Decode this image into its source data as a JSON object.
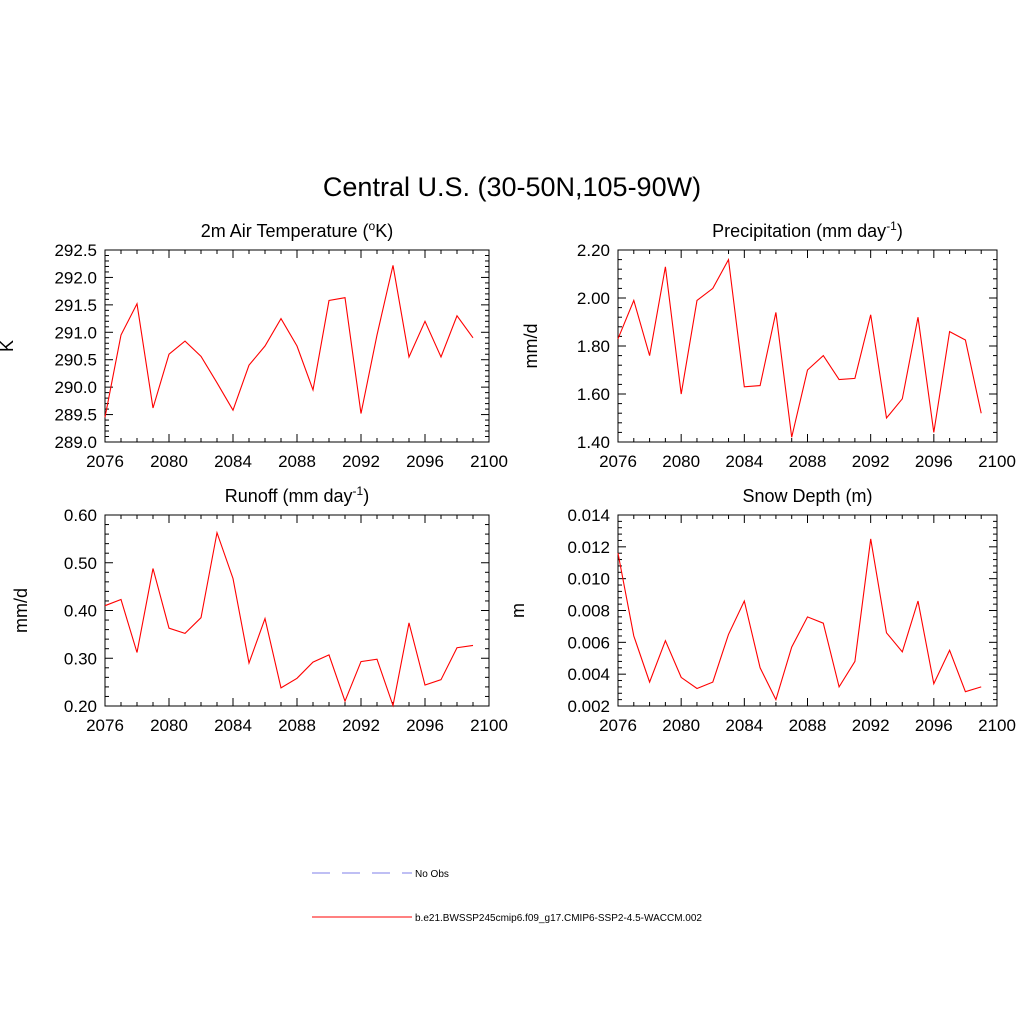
{
  "title": "Central U.S. (30-50N,105-90W)",
  "colors": {
    "model": "#ff0000",
    "obs": "#9999ee",
    "axis": "#000000"
  },
  "legend": {
    "items": [
      {
        "label": "No Obs",
        "style": "dashed"
      },
      {
        "label": "b.e21.BWSSP245cmip6.f09_g17.CMIP6-SSP2-4.5-WACCM.002",
        "style": "solid"
      }
    ]
  },
  "chart_data": [
    {
      "type": "line",
      "title": "2m Air Temperature (",
      "title_sup": "o",
      "title_tail": "K)",
      "xlabel": "",
      "ylabel": "K",
      "xlim": [
        2076,
        2100
      ],
      "ylim": [
        289.0,
        292.5
      ],
      "xticks": [
        "2076",
        "2080",
        "2084",
        "2088",
        "2092",
        "2096",
        "2100"
      ],
      "yticks": [
        "289.0",
        "289.5",
        "290.0",
        "290.5",
        "291.0",
        "291.5",
        "292.0",
        "292.5"
      ],
      "x": [
        2076,
        2077,
        2078,
        2079,
        2080,
        2081,
        2082,
        2083,
        2084,
        2085,
        2086,
        2087,
        2088,
        2089,
        2090,
        2091,
        2092,
        2093,
        2094,
        2095,
        2096,
        2097,
        2098,
        2099
      ],
      "values": [
        289.45,
        290.95,
        291.52,
        289.62,
        290.6,
        290.84,
        290.56,
        290.08,
        289.58,
        290.4,
        290.75,
        291.25,
        290.75,
        289.95,
        291.58,
        291.63,
        289.52,
        290.95,
        292.22,
        290.55,
        291.2,
        290.55,
        291.3,
        290.9
      ]
    },
    {
      "type": "line",
      "title": "Precipitation (mm day",
      "title_sup": "-1",
      "title_tail": ")",
      "xlabel": "",
      "ylabel": "mm/d",
      "xlim": [
        2076,
        2100
      ],
      "ylim": [
        1.4,
        2.2
      ],
      "xticks": [
        "2076",
        "2080",
        "2084",
        "2088",
        "2092",
        "2096",
        "2100"
      ],
      "yticks": [
        "1.40",
        "1.60",
        "1.80",
        "2.00",
        "2.20"
      ],
      "x": [
        2076,
        2077,
        2078,
        2079,
        2080,
        2081,
        2082,
        2083,
        2084,
        2085,
        2086,
        2087,
        2088,
        2089,
        2090,
        2091,
        2092,
        2093,
        2094,
        2095,
        2096,
        2097,
        2098,
        2099
      ],
      "values": [
        1.83,
        1.99,
        1.76,
        2.13,
        1.6,
        1.99,
        2.04,
        2.16,
        1.63,
        1.635,
        1.94,
        1.42,
        1.7,
        1.76,
        1.66,
        1.665,
        1.93,
        1.5,
        1.58,
        1.92,
        1.44,
        1.86,
        1.825,
        1.52
      ]
    },
    {
      "type": "line",
      "title": "Runoff (mm day",
      "title_sup": "-1",
      "title_tail": ")",
      "xlabel": "",
      "ylabel": "mm/d",
      "xlim": [
        2076,
        2100
      ],
      "ylim": [
        0.2,
        0.6
      ],
      "xticks": [
        "2076",
        "2080",
        "2084",
        "2088",
        "2092",
        "2096",
        "2100"
      ],
      "yticks": [
        "0.20",
        "0.30",
        "0.40",
        "0.50",
        "0.60"
      ],
      "x": [
        2076,
        2077,
        2078,
        2079,
        2080,
        2081,
        2082,
        2083,
        2084,
        2085,
        2086,
        2087,
        2088,
        2089,
        2090,
        2091,
        2092,
        2093,
        2094,
        2095,
        2096,
        2097,
        2098,
        2099
      ],
      "values": [
        0.41,
        0.423,
        0.312,
        0.488,
        0.363,
        0.352,
        0.385,
        0.563,
        0.467,
        0.29,
        0.383,
        0.238,
        0.258,
        0.292,
        0.307,
        0.21,
        0.293,
        0.298,
        0.201,
        0.374,
        0.244,
        0.255,
        0.322,
        0.327
      ]
    },
    {
      "type": "line",
      "title": "Snow Depth (m)",
      "title_sup": "",
      "title_tail": "",
      "xlabel": "",
      "ylabel": "m",
      "xlim": [
        2076,
        2100
      ],
      "ylim": [
        0.002,
        0.014
      ],
      "xticks": [
        "2076",
        "2080",
        "2084",
        "2088",
        "2092",
        "2096",
        "2100"
      ],
      "yticks": [
        "0.002",
        "0.004",
        "0.006",
        "0.008",
        "0.010",
        "0.012",
        "0.014"
      ],
      "x": [
        2076,
        2077,
        2078,
        2079,
        2080,
        2081,
        2082,
        2083,
        2084,
        2085,
        2086,
        2087,
        2088,
        2089,
        2090,
        2091,
        2092,
        2093,
        2094,
        2095,
        2096,
        2097,
        2098,
        2099
      ],
      "values": [
        0.0116,
        0.0064,
        0.0035,
        0.0061,
        0.0038,
        0.0031,
        0.0035,
        0.0065,
        0.0086,
        0.0044,
        0.0024,
        0.0057,
        0.0076,
        0.0072,
        0.0032,
        0.0048,
        0.0125,
        0.0066,
        0.0054,
        0.0086,
        0.0034,
        0.0055,
        0.0029,
        0.0032
      ]
    }
  ]
}
